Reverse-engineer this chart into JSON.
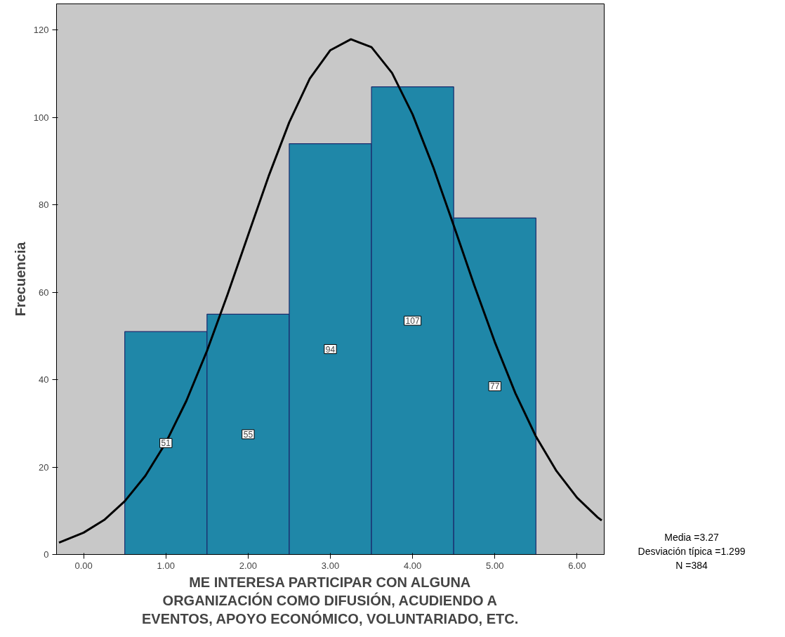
{
  "chart_data": {
    "type": "histogram",
    "xlabel": "ME INTERESA PARTICIPAR CON ALGUNA ORGANIZACIÓN COMO DIFUSIÓN, ACUDIENDO A EVENTOS, APOYO ECONÓMICO, VOLUNTARIADO, ETC.",
    "ylabel": "Frecuencia",
    "bins": [
      0.5,
      1.5,
      2.5,
      3.5,
      4.5,
      5.5
    ],
    "values": [
      51,
      55,
      94,
      107,
      77
    ],
    "color": "#1f87a8",
    "value_labels": [
      "51",
      "55",
      "94",
      "107",
      "77"
    ],
    "series": [
      {
        "type": "line",
        "color": "#000000",
        "x": [
          -0.3,
          0,
          0.25,
          0.5,
          0.75,
          1,
          1.25,
          1.5,
          1.75,
          2,
          2.25,
          2.5,
          2.75,
          3,
          3.25,
          3.5,
          3.75,
          4,
          4.25,
          4.5,
          4.75,
          5,
          5.25,
          5.5,
          5.75,
          6,
          6.25,
          6.3
        ],
        "values": [
          2.7,
          5,
          7.9,
          12.2,
          18,
          25.6,
          35.2,
          46.6,
          59.5,
          73.1,
          86.6,
          98.9,
          108.9,
          115.4,
          117.9,
          116.1,
          110.2,
          100.7,
          88.7,
          75.3,
          61.6,
          48.6,
          36.9,
          27,
          19.1,
          13,
          8.5,
          7.8
        ]
      }
    ],
    "xlim": [
      -0.33,
      6.33
    ],
    "xticks": [
      {
        "value": 0,
        "label": "0.00"
      },
      {
        "value": 1,
        "label": "1.00"
      },
      {
        "value": 2,
        "label": "2.00"
      },
      {
        "value": 3,
        "label": "3.00"
      },
      {
        "value": 4,
        "label": "4.00"
      },
      {
        "value": 5,
        "label": "5.00"
      },
      {
        "value": 6,
        "label": "6.00"
      }
    ],
    "ylim": [
      0,
      126
    ],
    "yticks": [
      0,
      20,
      40,
      60,
      80,
      100,
      120
    ],
    "grid": false,
    "annotations": [
      "Media =3.27\nDesviación típica =1.299\nN =384"
    ]
  }
}
